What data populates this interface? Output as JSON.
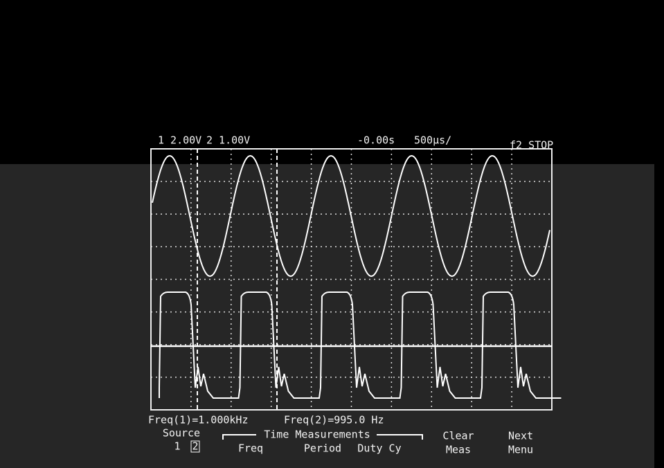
{
  "top_bar": {
    "channel1": "1 2.00V",
    "channel2": "2 1.00V",
    "delay": "-0.00s",
    "timebase": "500µs/",
    "status": "f2 STOP"
  },
  "readout": {
    "freq1": "Freq(1)=1.000kHz",
    "freq2": "Freq(2)=995.0 Hz"
  },
  "softkeys": {
    "source_label": "Source",
    "source_1": "1",
    "source_2": "2",
    "group": "Time Measurements",
    "freq": "Freq",
    "period": "Period",
    "duty": "Duty Cy",
    "clear": [
      "Clear",
      "Meas"
    ],
    "next": [
      "Next",
      "Menu"
    ]
  }
}
